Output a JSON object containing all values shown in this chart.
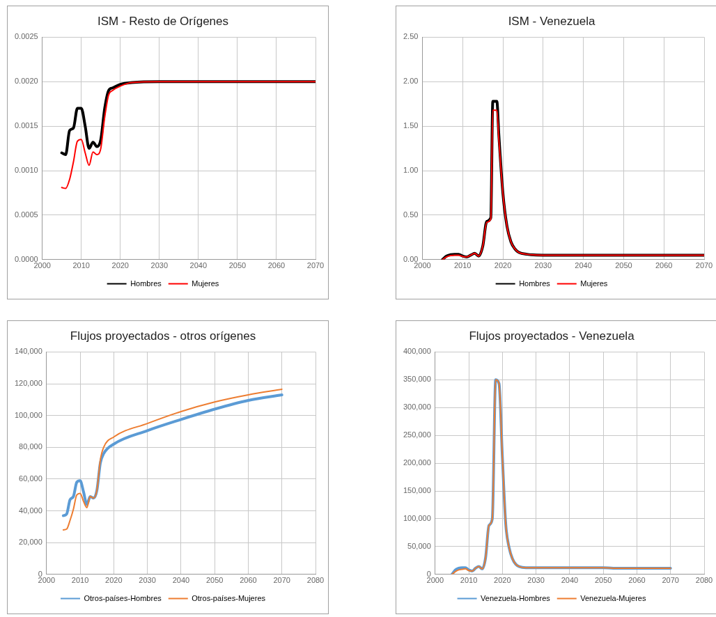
{
  "chart_data": [
    {
      "type": "line",
      "title": "ISM - Resto de Orígenes",
      "xlim": [
        2000,
        2070
      ],
      "xticks": [
        2000,
        2010,
        2020,
        2030,
        2040,
        2050,
        2060,
        2070
      ],
      "ylim": [
        0,
        0.0025
      ],
      "yticks": [
        {
          "value": 0,
          "label": "0.0000"
        },
        0.0005,
        {
          "value": 0.001,
          "label": "0.0010"
        },
        0.0015,
        {
          "value": 0.002,
          "label": "0.0020"
        },
        0.0025
      ],
      "grid": true,
      "legend": "bottom",
      "marker": "none",
      "series": [
        {
          "name": "Hombres",
          "color": "#000000",
          "x": [
            2005,
            2006,
            2007,
            2008,
            2009,
            2010,
            2011,
            2012,
            2013,
            2014,
            2015,
            2016,
            2017,
            2018,
            2020,
            2023,
            2030,
            2070
          ],
          "values": [
            0.0012,
            0.00118,
            0.00145,
            0.00148,
            0.0017,
            0.0017,
            0.0015,
            0.00125,
            0.00132,
            0.00127,
            0.00135,
            0.0017,
            0.0019,
            0.00193,
            0.00197,
            0.00199,
            0.002,
            0.002
          ]
        },
        {
          "name": "Mujeres",
          "color": "#ff0000",
          "x": [
            2005,
            2006,
            2007,
            2008,
            2009,
            2010,
            2011,
            2012,
            2013,
            2014,
            2015,
            2016,
            2017,
            2018,
            2020,
            2023,
            2030,
            2070
          ],
          "values": [
            0.00081,
            0.0008,
            0.0009,
            0.0011,
            0.00133,
            0.00135,
            0.0012,
            0.00106,
            0.00121,
            0.00118,
            0.00125,
            0.0016,
            0.00185,
            0.0019,
            0.00195,
            0.00199,
            0.002,
            0.002
          ]
        }
      ]
    },
    {
      "type": "line",
      "title": "ISM - Venezuela",
      "xlim": [
        2000,
        2070
      ],
      "xticks": [
        2000,
        2010,
        2020,
        2030,
        2040,
        2050,
        2060,
        2070
      ],
      "ylim": [
        0,
        2.5
      ],
      "yticks": [
        {
          "value": 0,
          "label": "0.00"
        },
        {
          "value": 0.5,
          "label": "0.50"
        },
        {
          "value": 1,
          "label": "1.00"
        },
        {
          "value": 1.5,
          "label": "1.50"
        },
        {
          "value": 2,
          "label": "2.00"
        },
        {
          "value": 2.5,
          "label": "2.50"
        }
      ],
      "grid": true,
      "legend": "bottom",
      "marker": "none",
      "series": [
        {
          "name": "Hombres",
          "color": "#000000",
          "x": [
            2005,
            2006,
            2007,
            2008,
            2009,
            2010,
            2011,
            2012,
            2013,
            2014,
            2015,
            2016,
            2017,
            2017.5,
            2018.5,
            2019,
            2020,
            2021,
            2022,
            2023,
            2024,
            2026,
            2030,
            2070
          ],
          "values": [
            0,
            0.04,
            0.055,
            0.06,
            0.06,
            0.04,
            0.03,
            0.05,
            0.07,
            0.04,
            0.15,
            0.43,
            0.47,
            1.78,
            1.78,
            1.4,
            0.75,
            0.38,
            0.2,
            0.12,
            0.08,
            0.06,
            0.05,
            0.05
          ]
        },
        {
          "name": "Mujeres",
          "color": "#ff0000",
          "x": [
            2005,
            2006,
            2007,
            2008,
            2009,
            2010,
            2011,
            2012,
            2013,
            2014,
            2015,
            2016,
            2017,
            2017.5,
            2018.5,
            2019,
            2020,
            2021,
            2022,
            2023,
            2024,
            2026,
            2030,
            2070
          ],
          "values": [
            0,
            0.03,
            0.045,
            0.05,
            0.05,
            0.035,
            0.03,
            0.05,
            0.07,
            0.04,
            0.15,
            0.42,
            0.46,
            1.68,
            1.68,
            1.35,
            0.75,
            0.38,
            0.2,
            0.12,
            0.08,
            0.06,
            0.05,
            0.05
          ]
        }
      ]
    },
    {
      "type": "line",
      "title": "Flujos proyectados - otros orígenes",
      "xlim": [
        2000,
        2080
      ],
      "xticks": [
        2000,
        2010,
        2020,
        2030,
        2040,
        2050,
        2060,
        2070,
        2080
      ],
      "ylim": [
        0,
        140000
      ],
      "yticks": [
        0,
        {
          "value": 20000,
          "label": "20,000"
        },
        {
          "value": 40000,
          "label": "40,000"
        },
        {
          "value": 60000,
          "label": "60,000"
        },
        {
          "value": 80000,
          "label": "80,000"
        },
        {
          "value": 100000,
          "label": "100,000"
        },
        {
          "value": 120000,
          "label": "120,000"
        },
        {
          "value": 140000,
          "label": "140,000"
        }
      ],
      "grid": true,
      "legend": "bottom",
      "marker": "none",
      "series": [
        {
          "name": "Otros-países-Hombres",
          "color": "#5b9bd5",
          "x": [
            2005,
            2006,
            2007,
            2008,
            2009,
            2010,
            2011,
            2012,
            2013,
            2014,
            2015,
            2016,
            2017,
            2020,
            2030,
            2040,
            2050,
            2060,
            2070
          ],
          "values": [
            37000,
            38000,
            47000,
            49000,
            58000,
            59000,
            52000,
            44000,
            49000,
            48000,
            53000,
            70000,
            76000,
            82000,
            90500,
            97500,
            104000,
            109500,
            113000
          ]
        },
        {
          "name": "Otros-países-Mujeres",
          "color": "#ed7d31",
          "x": [
            2005,
            2006,
            2007,
            2008,
            2009,
            2010,
            2011,
            2012,
            2013,
            2014,
            2015,
            2016,
            2017,
            2020,
            2030,
            2040,
            2050,
            2060,
            2070
          ],
          "values": [
            28000,
            28500,
            34000,
            41000,
            50000,
            51000,
            46000,
            42000,
            49000,
            48000,
            53000,
            72000,
            80000,
            86500,
            95000,
            102500,
            108500,
            113000,
            116500
          ]
        }
      ]
    },
    {
      "type": "line",
      "title": "Flujos proyectados - Venezuela",
      "xlim": [
        2000,
        2080
      ],
      "xticks": [
        2000,
        2010,
        2020,
        2030,
        2040,
        2050,
        2060,
        2070,
        2080
      ],
      "ylim": [
        0,
        400000
      ],
      "yticks": [
        0,
        {
          "value": 50000,
          "label": "50,000"
        },
        {
          "value": 100000,
          "label": "100,000"
        },
        {
          "value": 150000,
          "label": "150,000"
        },
        {
          "value": 200000,
          "label": "200,000"
        },
        {
          "value": 250000,
          "label": "250,000"
        },
        {
          "value": 300000,
          "label": "300,000"
        },
        {
          "value": 350000,
          "label": "350,000"
        },
        {
          "value": 400000,
          "label": "400,000"
        }
      ],
      "grid": true,
      "legend": "bottom",
      "marker": "none",
      "series": [
        {
          "name": "Venezuela-Hombres",
          "color": "#5b9bd5",
          "x": [
            2005,
            2006,
            2007,
            2008,
            2009,
            2010,
            2011,
            2012,
            2013,
            2014,
            2015,
            2016,
            2017,
            2018,
            2019,
            2020,
            2021,
            2022,
            2023,
            2024,
            2025,
            2027,
            2030,
            2050,
            2053,
            2070
          ],
          "values": [
            0,
            8000,
            11000,
            12000,
            12000,
            8000,
            6000,
            11000,
            14000,
            10000,
            30000,
            88000,
            100000,
            350000,
            343000,
            210000,
            90000,
            48000,
            28000,
            18000,
            14000,
            12000,
            12000,
            12000,
            11000,
            11000
          ]
        },
        {
          "name": "Venezuela-Mujeres",
          "color": "#ed7d31",
          "x": [
            2005,
            2006,
            2007,
            2008,
            2009,
            2010,
            2011,
            2012,
            2013,
            2014,
            2015,
            2016,
            2017,
            2018,
            2019,
            2020,
            2021,
            2022,
            2023,
            2024,
            2025,
            2027,
            2030,
            2050,
            2053,
            2070
          ],
          "values": [
            0,
            5000,
            8000,
            9000,
            10000,
            7000,
            6000,
            11000,
            14000,
            10000,
            30000,
            88000,
            100000,
            350000,
            343000,
            210000,
            90000,
            48000,
            28000,
            18000,
            14000,
            12000,
            12000,
            12000,
            11000,
            11000
          ]
        }
      ]
    }
  ]
}
